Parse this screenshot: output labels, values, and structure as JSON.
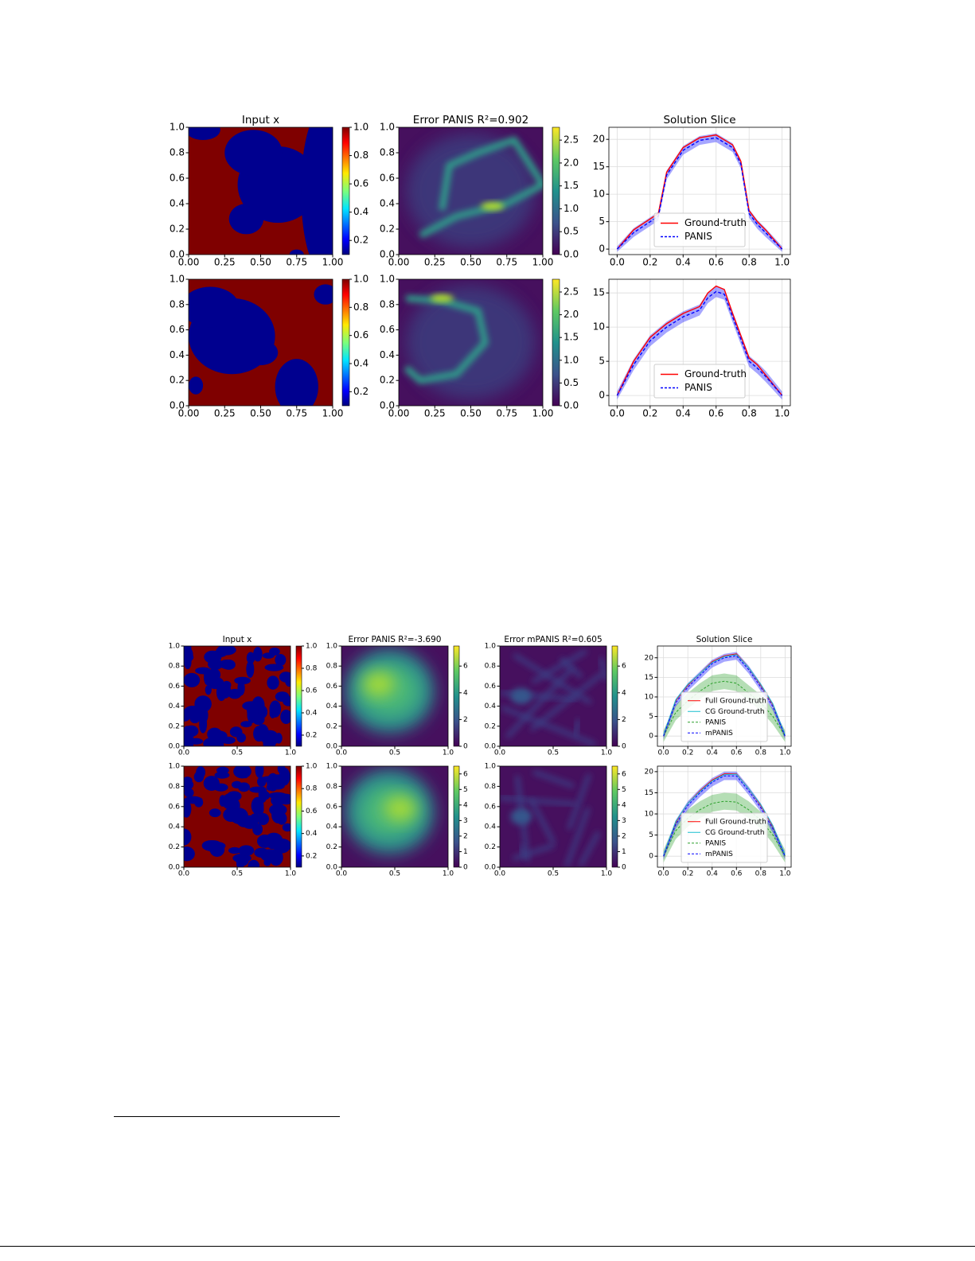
{
  "chart_data": [
    {
      "type": "heatmap",
      "title": "Input x",
      "colormap": "jet",
      "xlim": [
        0,
        1
      ],
      "ylim": [
        0,
        1
      ],
      "xticks": [
        {
          "value": 0,
          "label": "0.00"
        },
        0.25,
        {
          "value": 0.5,
          "label": "0.50"
        },
        0.75,
        {
          "value": 1,
          "label": "1.00"
        }
      ],
      "yticks": [
        {
          "value": 0,
          "label": "0.0"
        },
        0.2,
        0.4,
        0.6,
        0.8,
        {
          "value": 1,
          "label": "1.0"
        }
      ],
      "clim": [
        0.1,
        1
      ],
      "cticks": [
        0.2,
        0.4,
        0.6,
        0.8,
        {
          "value": 1,
          "label": "1.0"
        }
      ]
    },
    {
      "type": "heatmap",
      "title": "Error PANIS R²=0.902",
      "colormap": "viridis",
      "xlim": [
        0,
        1
      ],
      "ylim": [
        0,
        1
      ],
      "xticks": [
        {
          "value": 0,
          "label": "0.00"
        },
        0.25,
        {
          "value": 0.5,
          "label": "0.50"
        },
        0.75,
        {
          "value": 1,
          "label": "1.00"
        }
      ],
      "yticks": [
        {
          "value": 0,
          "label": "0.0"
        },
        0.2,
        0.4,
        0.6,
        0.8,
        {
          "value": 1,
          "label": "1.0"
        }
      ],
      "clim": [
        0,
        2.78
      ],
      "cticks": [
        {
          "value": 0,
          "label": "0.0"
        },
        0.5,
        {
          "value": 1,
          "label": "1.0"
        },
        1.5,
        {
          "value": 2,
          "label": "2.0"
        },
        2.5
      ]
    },
    {
      "type": "line",
      "title": "Solution Slice",
      "x": [
        0,
        0.1,
        0.2,
        0.25,
        0.3,
        0.4,
        0.5,
        0.6,
        0.7,
        0.75,
        0.8,
        0.85,
        0.9,
        1
      ],
      "xlim": [
        -0.05,
        1.05
      ],
      "ylim": [
        -1,
        22.2
      ],
      "grid": true,
      "legend": "lower center",
      "xticks": [
        {
          "value": 0,
          "label": "0.0"
        },
        0.2,
        0.4,
        0.6,
        0.8,
        {
          "value": 1,
          "label": "1.0"
        }
      ],
      "yticks": [
        0,
        5,
        10,
        15,
        20
      ],
      "series": [
        {
          "name": "Ground-truth",
          "color": "#ff0000",
          "style": "solid",
          "values": [
            0,
            3.5,
            5.5,
            6.5,
            14,
            18.5,
            20.3,
            20.8,
            19,
            16,
            7,
            5,
            3.5,
            0
          ]
        },
        {
          "name": "PANIS",
          "color": "#0000ff",
          "style": "dashed",
          "values": [
            0,
            3,
            5,
            6,
            13.5,
            18,
            19.8,
            20.3,
            18.5,
            15.5,
            6.5,
            4.5,
            3,
            0
          ],
          "lower": [
            -0.5,
            2.2,
            4.2,
            5.2,
            12.7,
            17.2,
            19,
            19.5,
            17.7,
            14.7,
            5.7,
            3.7,
            2.2,
            -0.5
          ],
          "upper": [
            0.5,
            3.8,
            5.8,
            6.8,
            14.3,
            18.8,
            20.6,
            21.1,
            19.3,
            16.3,
            7.3,
            5.3,
            3.8,
            0.5
          ]
        }
      ]
    },
    {
      "type": "heatmap",
      "colormap": "jet",
      "xlim": [
        0,
        1
      ],
      "ylim": [
        0,
        1
      ],
      "xticks": [
        {
          "value": 0,
          "label": "0.00"
        },
        0.25,
        {
          "value": 0.5,
          "label": "0.50"
        },
        0.75,
        {
          "value": 1,
          "label": "1.00"
        }
      ],
      "yticks": [
        {
          "value": 0,
          "label": "0.0"
        },
        0.2,
        0.4,
        0.6,
        0.8,
        {
          "value": 1,
          "label": "1.0"
        }
      ],
      "clim": [
        0.1,
        1
      ],
      "cticks": [
        0.2,
        0.4,
        0.6,
        0.8,
        {
          "value": 1,
          "label": "1.0"
        }
      ]
    },
    {
      "type": "heatmap",
      "colormap": "viridis",
      "xlim": [
        0,
        1
      ],
      "ylim": [
        0,
        1
      ],
      "xticks": [
        {
          "value": 0,
          "label": "0.00"
        },
        0.25,
        {
          "value": 0.5,
          "label": "0.50"
        },
        0.75,
        {
          "value": 1,
          "label": "1.00"
        }
      ],
      "yticks": [
        {
          "value": 0,
          "label": "0.0"
        },
        0.2,
        0.4,
        0.6,
        0.8,
        {
          "value": 1,
          "label": "1.0"
        }
      ],
      "clim": [
        0,
        2.78
      ],
      "cticks": [
        {
          "value": 0,
          "label": "0.0"
        },
        0.5,
        {
          "value": 1,
          "label": "1.0"
        },
        1.5,
        {
          "value": 2,
          "label": "2.0"
        },
        2.5
      ]
    },
    {
      "type": "line",
      "x": [
        0,
        0.1,
        0.2,
        0.3,
        0.4,
        0.5,
        0.55,
        0.6,
        0.65,
        0.7,
        0.8,
        0.85,
        0.9,
        1
      ],
      "xlim": [
        -0.05,
        1.05
      ],
      "ylim": [
        -1.5,
        17
      ],
      "grid": true,
      "legend": "lower center",
      "xticks": [
        {
          "value": 0,
          "label": "0.0"
        },
        0.2,
        0.4,
        0.6,
        0.8,
        {
          "value": 1,
          "label": "1.0"
        }
      ],
      "yticks": [
        0,
        5,
        10,
        15
      ],
      "series": [
        {
          "name": "Ground-truth",
          "color": "#ff0000",
          "style": "solid",
          "values": [
            0,
            5,
            8.5,
            10.5,
            12,
            13,
            15,
            16,
            15.5,
            12,
            5.5,
            4.5,
            3,
            0
          ]
        },
        {
          "name": "PANIS",
          "color": "#0000ff",
          "style": "dashed",
          "values": [
            0,
            4.5,
            8,
            10,
            11.5,
            12.5,
            14.3,
            15.2,
            14.8,
            11.5,
            5,
            4,
            2.8,
            0
          ],
          "lower": [
            -0.6,
            3.7,
            7.2,
            9.2,
            10.7,
            11.7,
            13.5,
            14.4,
            14,
            10.7,
            4.2,
            3.2,
            2,
            -0.6
          ],
          "upper": [
            0.6,
            5.3,
            8.8,
            10.8,
            12.3,
            13.3,
            15.1,
            16,
            15.6,
            12.3,
            5.8,
            4.8,
            3.6,
            0.6
          ]
        }
      ]
    },
    {
      "type": "heatmap",
      "title": "Input x",
      "colormap": "jet",
      "xlim": [
        0,
        1
      ],
      "ylim": [
        0,
        1
      ],
      "xticks": [
        {
          "value": 0,
          "label": "0.0"
        },
        0.5,
        {
          "value": 1,
          "label": "1.0"
        }
      ],
      "yticks": [
        {
          "value": 0,
          "label": "0.0"
        },
        0.2,
        0.4,
        0.6,
        0.8,
        {
          "value": 1,
          "label": "1.0"
        }
      ],
      "clim": [
        0.1,
        1
      ],
      "cticks": [
        0.2,
        0.4,
        0.6,
        0.8,
        {
          "value": 1,
          "label": "1.0"
        }
      ]
    },
    {
      "type": "heatmap",
      "title": "Error PANIS R²=-3.690",
      "colormap": "viridis",
      "xlim": [
        0,
        1
      ],
      "ylim": [
        0,
        1
      ],
      "xticks": [
        {
          "value": 0,
          "label": "0.0"
        },
        0.5,
        {
          "value": 1,
          "label": "1.0"
        }
      ],
      "yticks": [
        {
          "value": 0,
          "label": "0.0"
        },
        0.2,
        0.4,
        0.6,
        0.8,
        {
          "value": 1,
          "label": "1.0"
        }
      ],
      "clim": [
        0,
        7.5
      ],
      "cticks": [
        0,
        2,
        4,
        6
      ]
    },
    {
      "type": "heatmap",
      "title": "Error mPANIS R²=0.605",
      "colormap": "viridis",
      "xlim": [
        0,
        1
      ],
      "ylim": [
        0,
        1
      ],
      "xticks": [
        {
          "value": 0,
          "label": "0.0"
        },
        0.5,
        {
          "value": 1,
          "label": "1.0"
        }
      ],
      "yticks": [
        {
          "value": 0,
          "label": "0.0"
        },
        0.2,
        0.4,
        0.6,
        0.8,
        {
          "value": 1,
          "label": "1.0"
        }
      ],
      "clim": [
        0,
        7.5
      ],
      "cticks": [
        0,
        2,
        4,
        6
      ]
    },
    {
      "type": "line",
      "title": "Solution Slice",
      "x": [
        0,
        0.1,
        0.2,
        0.3,
        0.4,
        0.5,
        0.6,
        0.7,
        0.8,
        0.9,
        1
      ],
      "xlim": [
        -0.05,
        1.05
      ],
      "ylim": [
        -2.6,
        23
      ],
      "grid": true,
      "legend": "lower center",
      "xticks": [
        {
          "value": 0,
          "label": "0.0"
        },
        0.2,
        0.4,
        0.6,
        0.8,
        {
          "value": 1,
          "label": "1.0"
        }
      ],
      "yticks": [
        0,
        5,
        10,
        15,
        20
      ],
      "series": [
        {
          "name": "Full Ground-truth",
          "color": "#ff0000",
          "style": "solid",
          "values": [
            0,
            9,
            13,
            16,
            19,
            20.5,
            21,
            17.5,
            13,
            8,
            0
          ]
        },
        {
          "name": "CG Ground-truth",
          "color": "#17becf",
          "style": "solid",
          "values": [
            0.2,
            9.2,
            13.2,
            16,
            18.8,
            20.3,
            20.8,
            17.5,
            13.2,
            8.2,
            0.2
          ]
        },
        {
          "name": "PANIS",
          "color": "#2ca02c",
          "style": "dashed",
          "values": [
            0,
            6,
            9,
            11.5,
            13.5,
            14,
            13.5,
            11,
            8.5,
            5,
            0
          ],
          "lower": [
            -1.5,
            4,
            7,
            9.5,
            11.5,
            12,
            11.5,
            9,
            6.5,
            3,
            -1.5
          ],
          "upper": [
            1.5,
            8,
            11,
            13.5,
            15.5,
            16,
            15.5,
            13,
            10.5,
            7,
            1.5
          ]
        },
        {
          "name": "mPANIS",
          "color": "#0000ff",
          "style": "dashed",
          "values": [
            0,
            8.5,
            12.5,
            15.5,
            18.5,
            20,
            20.5,
            17,
            12.5,
            7.5,
            0
          ],
          "lower": [
            -0.8,
            7.5,
            11.5,
            14.5,
            17.5,
            19,
            19.5,
            16,
            11.5,
            6.5,
            -0.8
          ],
          "upper": [
            0.8,
            9.5,
            13.5,
            16.5,
            19.5,
            21,
            21.5,
            18,
            13.5,
            8.5,
            0.8
          ]
        }
      ]
    },
    {
      "type": "heatmap",
      "colormap": "jet",
      "xlim": [
        0,
        1
      ],
      "ylim": [
        0,
        1
      ],
      "xticks": [
        {
          "value": 0,
          "label": "0.0"
        },
        0.5,
        {
          "value": 1,
          "label": "1.0"
        }
      ],
      "yticks": [
        {
          "value": 0,
          "label": "0.0"
        },
        0.2,
        0.4,
        0.6,
        0.8,
        {
          "value": 1,
          "label": "1.0"
        }
      ],
      "clim": [
        0.1,
        1
      ],
      "cticks": [
        0.2,
        0.4,
        0.6,
        0.8,
        {
          "value": 1,
          "label": "1.0"
        }
      ]
    },
    {
      "type": "heatmap",
      "colormap": "viridis",
      "xlim": [
        0,
        1
      ],
      "ylim": [
        0,
        1
      ],
      "xticks": [
        {
          "value": 0,
          "label": "0.0"
        },
        0.5,
        {
          "value": 1,
          "label": "1.0"
        }
      ],
      "yticks": [
        {
          "value": 0,
          "label": "0.0"
        },
        0.2,
        0.4,
        0.6,
        0.8,
        {
          "value": 1,
          "label": "1.0"
        }
      ],
      "clim": [
        0,
        6.5
      ],
      "cticks": [
        0,
        1,
        2,
        3,
        4,
        5,
        6
      ]
    },
    {
      "type": "heatmap",
      "colormap": "viridis",
      "xlim": [
        0,
        1
      ],
      "ylim": [
        0,
        1
      ],
      "xticks": [
        {
          "value": 0,
          "label": "0.0"
        },
        0.5,
        {
          "value": 1,
          "label": "1.0"
        }
      ],
      "yticks": [
        {
          "value": 0,
          "label": "0.0"
        },
        0.2,
        0.4,
        0.6,
        0.8,
        {
          "value": 1,
          "label": "1.0"
        }
      ],
      "clim": [
        0,
        6.5
      ],
      "cticks": [
        0,
        1,
        2,
        3,
        4,
        5,
        6
      ]
    },
    {
      "type": "line",
      "x": [
        0,
        0.1,
        0.2,
        0.3,
        0.4,
        0.5,
        0.6,
        0.7,
        0.8,
        0.9,
        1
      ],
      "xlim": [
        -0.05,
        1.05
      ],
      "ylim": [
        -2.6,
        21.3
      ],
      "grid": true,
      "legend": "lower center",
      "xticks": [
        {
          "value": 0,
          "label": "0.0"
        },
        0.2,
        0.4,
        0.6,
        0.8,
        {
          "value": 1,
          "label": "1.0"
        }
      ],
      "yticks": [
        0,
        5,
        10,
        15,
        20
      ],
      "series": [
        {
          "name": "Full Ground-truth",
          "color": "#ff0000",
          "style": "solid",
          "values": [
            0,
            8,
            12.5,
            15.5,
            18,
            19.5,
            19.5,
            16,
            12,
            7,
            0
          ]
        },
        {
          "name": "CG Ground-truth",
          "color": "#17becf",
          "style": "solid",
          "values": [
            0.2,
            8.2,
            12.5,
            15.3,
            17.8,
            19.3,
            19.4,
            16,
            12.2,
            7.2,
            0.2
          ]
        },
        {
          "name": "PANIS",
          "color": "#2ca02c",
          "style": "dashed",
          "values": [
            0,
            6,
            9,
            11,
            12.5,
            13,
            12.8,
            11,
            8.5,
            5,
            0
          ],
          "lower": [
            -1.5,
            4,
            7,
            9,
            10.5,
            11,
            10.8,
            9,
            6.5,
            3,
            -1.5
          ],
          "upper": [
            1.5,
            8,
            11,
            13,
            14.5,
            15,
            14.8,
            13,
            10.5,
            7,
            1.5
          ]
        },
        {
          "name": "mPANIS",
          "color": "#0000ff",
          "style": "dashed",
          "values": [
            0,
            7.5,
            12,
            15,
            17.5,
            19,
            19,
            15.5,
            11.5,
            6.5,
            0
          ],
          "lower": [
            -0.8,
            6.5,
            11,
            14,
            16.5,
            18,
            18,
            14.5,
            10.5,
            5.5,
            -0.8
          ],
          "upper": [
            0.8,
            8.5,
            13,
            16,
            18.5,
            20,
            20,
            16.5,
            12.5,
            7.5,
            0.8
          ]
        }
      ]
    }
  ]
}
